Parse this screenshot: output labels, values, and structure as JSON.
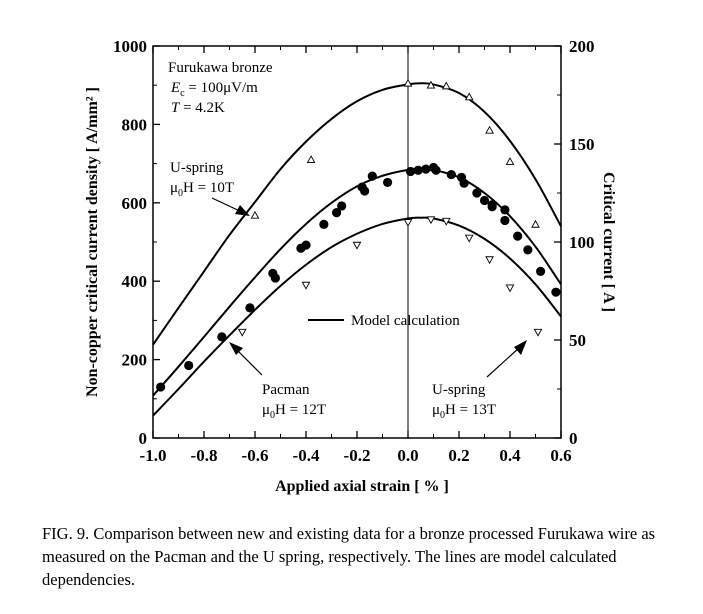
{
  "chart_data": {
    "type": "scatter",
    "title": "",
    "xlabel": "Applied axial strain [ % ]",
    "ylabel": "Non-copper critical current density [ A/mm² ]",
    "y2label": "Critical current [ A ]",
    "xlim": [
      -1.0,
      0.6
    ],
    "ylim": [
      0,
      1000
    ],
    "y2lim": [
      0,
      200
    ],
    "x_ticks": [
      -1.0,
      -0.8,
      -0.6,
      -0.4,
      -0.2,
      0.0,
      0.2,
      0.4,
      0.6
    ],
    "x_tick_labels": [
      "-1.0",
      "-0.8",
      "-0.6",
      "-0.4",
      "-0.2",
      "0.0",
      "0.2",
      "0.4",
      "0.6"
    ],
    "y_ticks": [
      0,
      200,
      400,
      600,
      800,
      1000
    ],
    "y_tick_labels": [
      "0",
      "200",
      "400",
      "600",
      "800",
      "1000"
    ],
    "y2_ticks": [
      0,
      50,
      100,
      150,
      200
    ],
    "y2_tick_labels": [
      "0",
      "50",
      "100",
      "150",
      "200"
    ],
    "vertical_line_x": 0.0,
    "info_box": {
      "line1": "Furukawa bronze",
      "line2": "E",
      "line2_sub": "c",
      "line2_rest": " = 100μV/m",
      "line3": "T",
      "line3_rest": " = 4.2K"
    },
    "series": [
      {
        "name": "U-spring 10T",
        "marker": "triangle-up-open",
        "x": [
          -0.6,
          -0.38,
          0.0,
          0.09,
          0.15,
          0.24,
          0.32,
          0.4,
          0.5
        ],
        "y": [
          568,
          710,
          905,
          900,
          898,
          870,
          785,
          705,
          545
        ]
      },
      {
        "name": "Pacman 12T",
        "marker": "circle-filled",
        "x": [
          -0.97,
          -0.86,
          -0.73,
          -0.62,
          -0.52,
          -0.53,
          -0.42,
          -0.4,
          -0.33,
          -0.28,
          -0.26,
          -0.17,
          -0.18,
          -0.14,
          -0.08,
          0.01,
          0.04,
          0.07,
          0.1,
          0.11,
          0.17,
          0.21,
          0.22,
          0.27,
          0.3,
          0.33,
          0.33,
          0.38,
          0.38,
          0.43,
          0.47,
          0.52,
          0.58
        ],
        "y": [
          130,
          185,
          258,
          332,
          408,
          420,
          484,
          492,
          545,
          575,
          592,
          630,
          640,
          668,
          652,
          680,
          683,
          686,
          690,
          683,
          672,
          665,
          650,
          625,
          606,
          595,
          590,
          582,
          555,
          515,
          480,
          425,
          372
        ]
      },
      {
        "name": "U-spring 13T",
        "marker": "triangle-down-open",
        "x": [
          -0.65,
          -0.4,
          -0.2,
          0.0,
          0.09,
          0.15,
          0.24,
          0.32,
          0.4,
          0.51
        ],
        "y": [
          270,
          390,
          492,
          550,
          557,
          553,
          510,
          455,
          383,
          270
        ]
      }
    ],
    "model_curves": [
      {
        "name": "Model calculation 10T",
        "x": [
          -1.0,
          -0.9,
          -0.8,
          -0.7,
          -0.6,
          -0.5,
          -0.4,
          -0.3,
          -0.2,
          -0.1,
          0.0,
          0.05,
          0.1,
          0.2,
          0.3,
          0.4,
          0.5,
          0.6
        ],
        "y": [
          238,
          332,
          425,
          518,
          602,
          686,
          756,
          814,
          859,
          888,
          902,
          905,
          902,
          880,
          832,
          758,
          660,
          540
        ]
      },
      {
        "name": "Model calculation 12T",
        "x": [
          -1.0,
          -0.9,
          -0.8,
          -0.7,
          -0.6,
          -0.5,
          -0.4,
          -0.3,
          -0.2,
          -0.1,
          0.0,
          0.05,
          0.1,
          0.2,
          0.3,
          0.4,
          0.5,
          0.6
        ],
        "y": [
          108,
          182,
          258,
          335,
          410,
          482,
          546,
          600,
          642,
          669,
          684,
          686,
          684,
          665,
          625,
          566,
          488,
          392
        ]
      },
      {
        "name": "Model calculation 13T",
        "x": [
          -1.0,
          -0.9,
          -0.8,
          -0.7,
          -0.6,
          -0.5,
          -0.4,
          -0.3,
          -0.2,
          -0.1,
          0.0,
          0.05,
          0.1,
          0.2,
          0.3,
          0.4,
          0.5,
          0.6
        ],
        "y": [
          57,
          125,
          195,
          262,
          327,
          388,
          442,
          487,
          521,
          546,
          560,
          562,
          560,
          542,
          508,
          458,
          392,
          310
        ]
      }
    ],
    "annotations": {
      "uspring10_name": "U-spring",
      "uspring10_field_mu": "μ",
      "uspring10_field_sub": "0",
      "uspring10_field_rest": "H = 10T",
      "pacman_name": "Pacman",
      "pacman_field_mu": "μ",
      "pacman_field_sub": "0",
      "pacman_field_rest": "H = 12T",
      "uspring13_name": "U-spring",
      "uspring13_field_mu": "μ",
      "uspring13_field_sub": "0",
      "uspring13_field_rest": "H = 13T",
      "model_legend": "Model calculation"
    }
  },
  "caption": "FIG. 9. Comparison between new and existing data for a bronze processed Furukawa wire as measured on the Pacman and the U spring, respectively. The lines are model calculated dependencies."
}
